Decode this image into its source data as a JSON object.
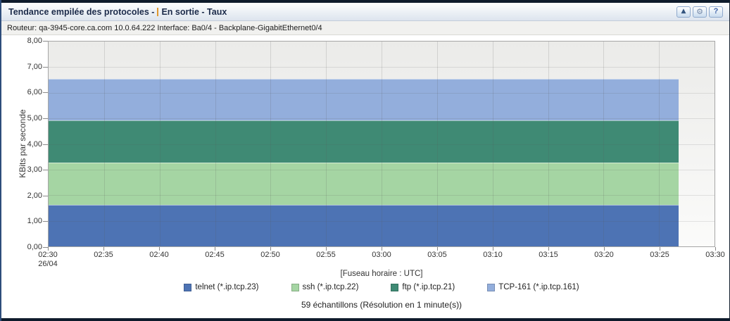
{
  "window": {
    "title_part1": "Tendance empilée des protocoles -",
    "title_part2": "En sortie - Taux",
    "accent_color": "#e0992f",
    "buttons": {
      "collapse_icon": "▲",
      "settings_icon": "⚙",
      "help_label": "?"
    }
  },
  "subtitle": "Routeur: qa-3945-core.ca.com 10.0.64.222 Interface: Ba0/4 - Backplane-GigabitEthernet0/4",
  "chart_data": {
    "type": "area",
    "stacked": true,
    "grid": true,
    "legend_position": "bottom",
    "ylabel": "KBits par seconde",
    "xlabel": "[Fuseau horaire : UTC]",
    "ylim": [
      0,
      8
    ],
    "y_tick_labels": [
      "8,00",
      "7,00",
      "6,00",
      "5,00",
      "4,00",
      "3,00",
      "2,00",
      "1,00",
      "0,00"
    ],
    "x_tick_labels": [
      "02:30",
      "02:35",
      "02:40",
      "02:45",
      "02:50",
      "02:55",
      "03:00",
      "03:05",
      "03:10",
      "03:15",
      "03:20",
      "03:25",
      "03:30"
    ],
    "x_first_tick_date": "26/04",
    "time_range": {
      "start": "02:30",
      "end_of_data": "03:27",
      "axis_end": "03:30"
    },
    "data_fraction_of_axis": 0.946,
    "values_constant_over_time": true,
    "series": [
      {
        "name": "telnet (*.ip.tcp.23)",
        "color": "#4d73b4",
        "constant_value": 1.63,
        "cumulative_top": 1.63
      },
      {
        "name": "ssh (*.ip.tcp.22)",
        "color": "#a5d5a3",
        "constant_value": 1.64,
        "cumulative_top": 3.27
      },
      {
        "name": "ftp (*.ip.tcp.21)",
        "color": "#3f8a74",
        "constant_value": 1.64,
        "cumulative_top": 4.91
      },
      {
        "name": "TCP-161 (*.ip.tcp.161)",
        "color": "#93aedc",
        "constant_value": 1.64,
        "cumulative_top": 6.55
      }
    ],
    "footer": "59 échantillons (Résolution en 1 minute(s))"
  }
}
